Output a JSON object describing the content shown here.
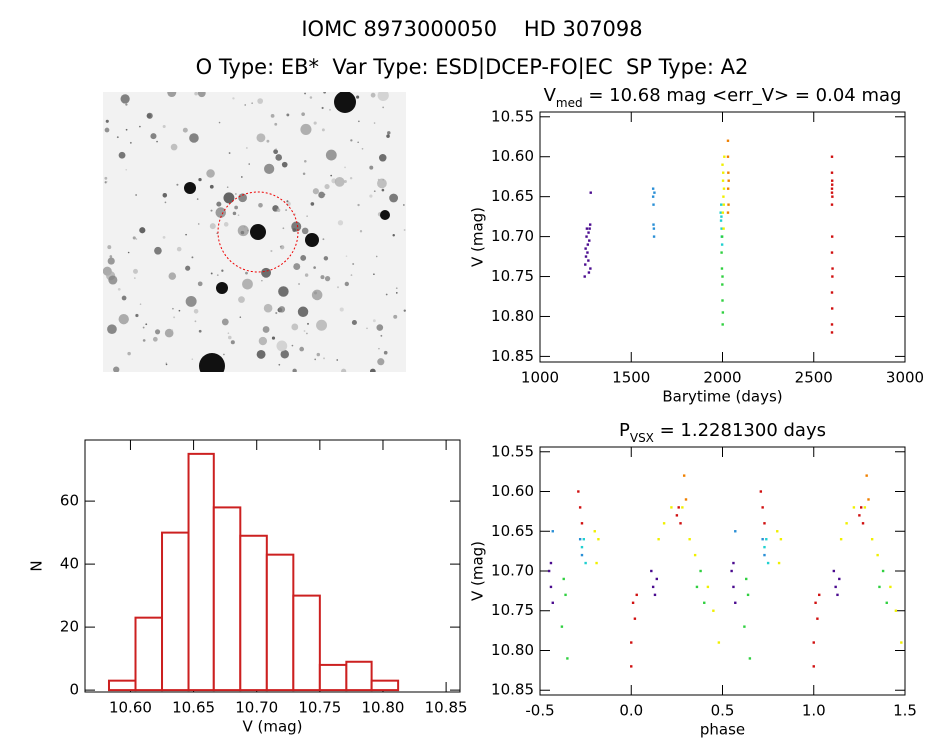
{
  "header": {
    "title": "IOMC 8973000050    HD 307098",
    "subtitle": "O Type: EB*  Var Type: ESD|DCEP-FO|EC  SP Type: A2"
  },
  "chart_data": [
    {
      "type": "scatter",
      "title": [
        "V",
        "med",
        " = 10.68 mag <err_V> = 0.04 mag"
      ],
      "x_label": "Barytime (days)",
      "y_label": "V (mag)",
      "xlim": [
        1000,
        3000
      ],
      "xticks": [
        1000,
        1500,
        2000,
        2500,
        3000
      ],
      "ylim": [
        10.544,
        10.857
      ],
      "y_inverted": true,
      "yticks": [
        10.55,
        {
          "value": 10.6,
          "label": "10.60"
        },
        10.65,
        {
          "value": 10.7,
          "label": "10.70"
        },
        10.75,
        {
          "value": 10.8,
          "label": "10.80"
        },
        10.85
      ],
      "series": [
        {
          "color": "#4b0c8f",
          "x": [
            1245,
            1248,
            1250,
            1252,
            1255,
            1257,
            1260,
            1262,
            1265,
            1268,
            1270,
            1272,
            1275,
            1278,
            1276,
            1266
          ],
          "values": [
            10.75,
            10.735,
            10.715,
            10.725,
            10.7,
            10.69,
            10.72,
            10.71,
            10.73,
            10.745,
            10.705,
            10.69,
            10.685,
            10.645,
            10.74,
            10.695
          ]
        },
        {
          "color": "#2a8fd6",
          "x": [
            1620,
            1620,
            1622,
            1622,
            1624,
            1625,
            1627
          ],
          "values": [
            10.64,
            10.65,
            10.66,
            10.685,
            10.69,
            10.7,
            10.645
          ]
        },
        {
          "color": "#20d0d0",
          "x": [
            1990,
            1992,
            1995,
            1996,
            1993,
            1998,
            1994
          ],
          "values": [
            10.67,
            10.68,
            10.69,
            10.7,
            10.66,
            10.71,
            10.675
          ]
        },
        {
          "color": "#30d040",
          "x": [
            1995,
            1997,
            1999,
            2000,
            2001,
            1998,
            2002,
            2000
          ],
          "values": [
            10.72,
            10.74,
            10.76,
            10.78,
            10.81,
            10.7,
            10.795,
            10.75
          ]
        },
        {
          "color": "#f0f000",
          "x": [
            2000,
            2003,
            2005,
            2002,
            2008,
            2006,
            2010,
            2004,
            2007
          ],
          "values": [
            10.61,
            10.63,
            10.65,
            10.67,
            10.64,
            10.69,
            10.6,
            10.62,
            10.66
          ]
        },
        {
          "color": "#f08000",
          "x": [
            2030,
            2030,
            2032,
            2031,
            2033,
            2030,
            2034
          ],
          "values": [
            10.58,
            10.6,
            10.62,
            10.64,
            10.66,
            10.67,
            10.63
          ]
        },
        {
          "color": "#d01010",
          "x": [
            2600,
            2600,
            2601,
            2600,
            2602,
            2600,
            2601,
            2600,
            2602,
            2600,
            2601,
            2600,
            2600,
            2603,
            2600,
            2601
          ],
          "values": [
            10.6,
            10.62,
            10.63,
            10.64,
            10.65,
            10.66,
            10.7,
            10.72,
            10.75,
            10.77,
            10.79,
            10.81,
            10.82,
            10.74,
            10.645,
            10.635
          ]
        }
      ]
    },
    {
      "type": "histogram",
      "x_label": "V (mag)",
      "y_label": "N",
      "color": "#cc2020",
      "bins": [
        10.583,
        10.604,
        10.625,
        10.646,
        10.666,
        10.687,
        10.708,
        10.729,
        10.75,
        10.771,
        10.791,
        10.812
      ],
      "values": [
        3,
        23,
        50,
        75,
        58,
        49,
        43,
        30,
        8,
        9,
        3
      ],
      "xlim": [
        10.564,
        10.861
      ],
      "xticks": [
        {
          "value": 10.6,
          "label": "10.60"
        },
        10.65,
        {
          "value": 10.7,
          "label": "10.70"
        },
        10.75,
        {
          "value": 10.8,
          "label": "10.80"
        },
        10.85
      ],
      "ylim": [
        -0.6,
        79.4
      ],
      "yticks": [
        0,
        20,
        40,
        60
      ]
    },
    {
      "type": "scatter",
      "title": [
        "P",
        "VSX",
        " = 1.2281300 days"
      ],
      "x_label": "phase",
      "y_label": "V (mag)",
      "xlim": [
        -0.5,
        1.5
      ],
      "xticks": [
        -0.5,
        {
          "value": 0,
          "label": "0.0"
        },
        0.5,
        {
          "value": 1,
          "label": "1.0"
        },
        1.5
      ],
      "ylim": [
        10.544,
        10.856
      ],
      "y_inverted": true,
      "yticks": [
        10.55,
        {
          "value": 10.6,
          "label": "10.60"
        },
        10.65,
        {
          "value": 10.7,
          "label": "10.70"
        },
        10.75,
        {
          "value": 10.8,
          "label": "10.80"
        },
        10.85
      ],
      "series": [
        {
          "color": "#4b0c8f",
          "x": [
            -0.45,
            -0.44,
            -0.43,
            -0.44,
            0.12,
            0.13,
            0.11,
            0.14,
            0.55,
            0.56,
            0.57,
            0.56,
            1.12,
            1.13,
            1.11,
            1.14
          ],
          "values": [
            10.7,
            10.72,
            10.74,
            10.69,
            10.72,
            10.73,
            10.7,
            10.71,
            10.7,
            10.72,
            10.74,
            10.69,
            10.72,
            10.73,
            10.7,
            10.71
          ]
        },
        {
          "color": "#2a8fd6",
          "x": [
            -0.43,
            -0.28,
            -0.27,
            0.57,
            0.72,
            0.73
          ],
          "values": [
            10.65,
            10.66,
            10.68,
            10.65,
            10.66,
            10.68
          ]
        },
        {
          "color": "#20d0d0",
          "x": [
            -0.27,
            -0.26,
            -0.25,
            0.73,
            0.74,
            0.75
          ],
          "values": [
            10.67,
            10.66,
            10.69,
            10.67,
            10.66,
            10.69
          ]
        },
        {
          "color": "#30d040",
          "x": [
            -0.37,
            -0.36,
            -0.38,
            -0.35,
            0.38,
            0.36,
            0.4,
            0.63,
            0.64,
            0.62,
            0.65,
            1.38,
            1.36,
            1.4
          ],
          "values": [
            10.71,
            10.73,
            10.77,
            10.81,
            10.7,
            10.72,
            10.74,
            10.71,
            10.73,
            10.77,
            10.81,
            10.7,
            10.72,
            10.74
          ]
        },
        {
          "color": "#f0f000",
          "x": [
            -0.2,
            -0.18,
            -0.19,
            0.15,
            0.18,
            0.22,
            0.28,
            0.32,
            0.35,
            0.42,
            0.45,
            0.48,
            0.8,
            0.82,
            0.81,
            1.15,
            1.18,
            1.22,
            1.28,
            1.32,
            1.35,
            1.42,
            1.45,
            1.48
          ],
          "values": [
            10.65,
            10.66,
            10.69,
            10.66,
            10.64,
            10.62,
            10.62,
            10.66,
            10.68,
            10.72,
            10.75,
            10.79,
            10.65,
            10.66,
            10.69,
            10.66,
            10.64,
            10.62,
            10.62,
            10.66,
            10.68,
            10.72,
            10.75,
            10.79
          ]
        },
        {
          "color": "#f08000",
          "x": [
            0.29,
            0.3,
            1.29,
            1.3
          ],
          "values": [
            10.58,
            10.61,
            10.58,
            10.61
          ]
        },
        {
          "color": "#d01010",
          "x": [
            -0.29,
            -0.28,
            -0.27,
            0.01,
            0.02,
            0,
            0.03,
            0,
            0.26,
            0.27,
            0.25,
            0.71,
            0.72,
            0.73,
            1.01,
            1.02,
            1,
            1.03,
            1,
            1.26,
            1.27,
            1.25
          ],
          "values": [
            10.6,
            10.62,
            10.64,
            10.74,
            10.76,
            10.79,
            10.73,
            10.82,
            10.62,
            10.64,
            10.63,
            10.6,
            10.62,
            10.64,
            10.74,
            10.76,
            10.79,
            10.73,
            10.82,
            10.62,
            10.64,
            10.63
          ]
        }
      ]
    }
  ]
}
